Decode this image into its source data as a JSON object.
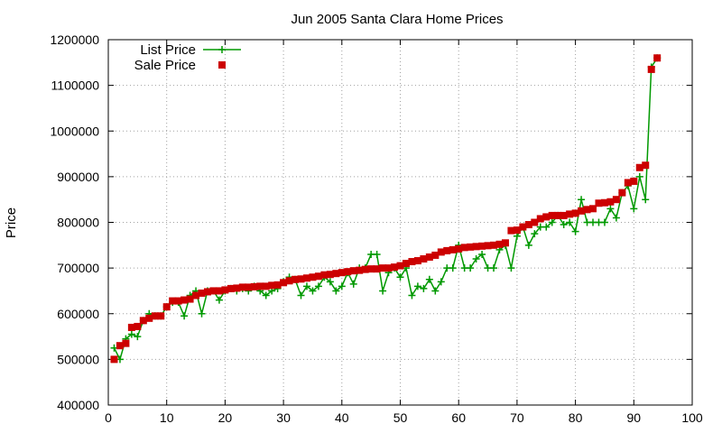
{
  "chart_data": {
    "type": "scatter",
    "title": "Jun 2005 Santa Clara Home Prices",
    "xlabel": "",
    "ylabel": "Price",
    "xlim": [
      0,
      100
    ],
    "ylim": [
      400000,
      1200000
    ],
    "xticks": [
      0,
      10,
      20,
      30,
      40,
      50,
      60,
      70,
      80,
      90,
      100
    ],
    "yticks": [
      400000,
      500000,
      600000,
      700000,
      800000,
      900000,
      1000000,
      1100000,
      1200000
    ],
    "grid": true,
    "legend_position": "top-left",
    "series": [
      {
        "name": "List Price",
        "style": "linespoints",
        "color": "#009900",
        "x": [
          1,
          2,
          3,
          4,
          5,
          6,
          7,
          8,
          9,
          10,
          11,
          12,
          13,
          14,
          15,
          16,
          17,
          18,
          19,
          20,
          21,
          22,
          23,
          24,
          25,
          26,
          27,
          28,
          29,
          30,
          31,
          32,
          33,
          34,
          35,
          36,
          37,
          38,
          39,
          40,
          41,
          42,
          43,
          44,
          45,
          46,
          47,
          48,
          49,
          50,
          51,
          52,
          53,
          54,
          55,
          56,
          57,
          58,
          59,
          60,
          61,
          62,
          63,
          64,
          65,
          66,
          67,
          68,
          69,
          70,
          71,
          72,
          73,
          74,
          75,
          76,
          77,
          78,
          79,
          80,
          81,
          82,
          83,
          84,
          85,
          86,
          87,
          88,
          89,
          90,
          91,
          92,
          93,
          94
        ],
        "y": [
          525000,
          500000,
          545000,
          555000,
          550000,
          585000,
          600000,
          595000,
          595000,
          615000,
          625000,
          625000,
          595000,
          640000,
          650000,
          600000,
          650000,
          650000,
          630000,
          650000,
          655000,
          650000,
          655000,
          650000,
          660000,
          650000,
          640000,
          650000,
          655000,
          670000,
          680000,
          675000,
          640000,
          660000,
          650000,
          660000,
          680000,
          670000,
          650000,
          660000,
          690000,
          665000,
          700000,
          700000,
          730000,
          730000,
          650000,
          690000,
          700000,
          680000,
          700000,
          640000,
          660000,
          655000,
          675000,
          650000,
          670000,
          700000,
          700000,
          750000,
          700000,
          700000,
          720000,
          730000,
          700000,
          700000,
          740000,
          750000,
          700000,
          770000,
          790000,
          750000,
          775000,
          790000,
          790000,
          800000,
          815000,
          795000,
          800000,
          780000,
          850000,
          800000,
          800000,
          800000,
          800000,
          830000,
          810000,
          865000,
          880000,
          830000,
          900000,
          850000,
          1140000,
          1160000
        ]
      },
      {
        "name": "Sale Price",
        "style": "points",
        "color": "#cc0000",
        "x": [
          1,
          2,
          3,
          4,
          5,
          6,
          7,
          8,
          9,
          10,
          11,
          12,
          13,
          14,
          15,
          16,
          17,
          18,
          19,
          20,
          21,
          22,
          23,
          24,
          25,
          26,
          27,
          28,
          29,
          30,
          31,
          32,
          33,
          34,
          35,
          36,
          37,
          38,
          39,
          40,
          41,
          42,
          43,
          44,
          45,
          46,
          47,
          48,
          49,
          50,
          51,
          52,
          53,
          54,
          55,
          56,
          57,
          58,
          59,
          60,
          61,
          62,
          63,
          64,
          65,
          66,
          67,
          68,
          69,
          70,
          71,
          72,
          73,
          74,
          75,
          76,
          77,
          78,
          79,
          80,
          81,
          82,
          83,
          84,
          85,
          86,
          87,
          88,
          89,
          90,
          91,
          92,
          93,
          94
        ],
        "y": [
          500000,
          530000,
          535000,
          570000,
          572000,
          585000,
          590000,
          595000,
          595000,
          615000,
          628000,
          628000,
          630000,
          632000,
          640000,
          645000,
          648000,
          650000,
          650000,
          652000,
          655000,
          656000,
          658000,
          658000,
          659000,
          660000,
          660000,
          662000,
          663000,
          668000,
          672000,
          675000,
          676000,
          678000,
          680000,
          682000,
          685000,
          686000,
          688000,
          690000,
          692000,
          694000,
          695000,
          697000,
          698000,
          698000,
          700000,
          700000,
          702000,
          705000,
          710000,
          714000,
          716000,
          720000,
          724000,
          728000,
          735000,
          738000,
          740000,
          742000,
          745000,
          746000,
          747000,
          748000,
          749000,
          750000,
          752000,
          755000,
          782000,
          783000,
          790000,
          795000,
          800000,
          808000,
          812000,
          815000,
          815000,
          815000,
          818000,
          820000,
          825000,
          828000,
          830000,
          842000,
          843000,
          845000,
          850000,
          865000,
          887000,
          890000,
          920000,
          925000,
          1135000,
          1160000
        ]
      }
    ]
  }
}
